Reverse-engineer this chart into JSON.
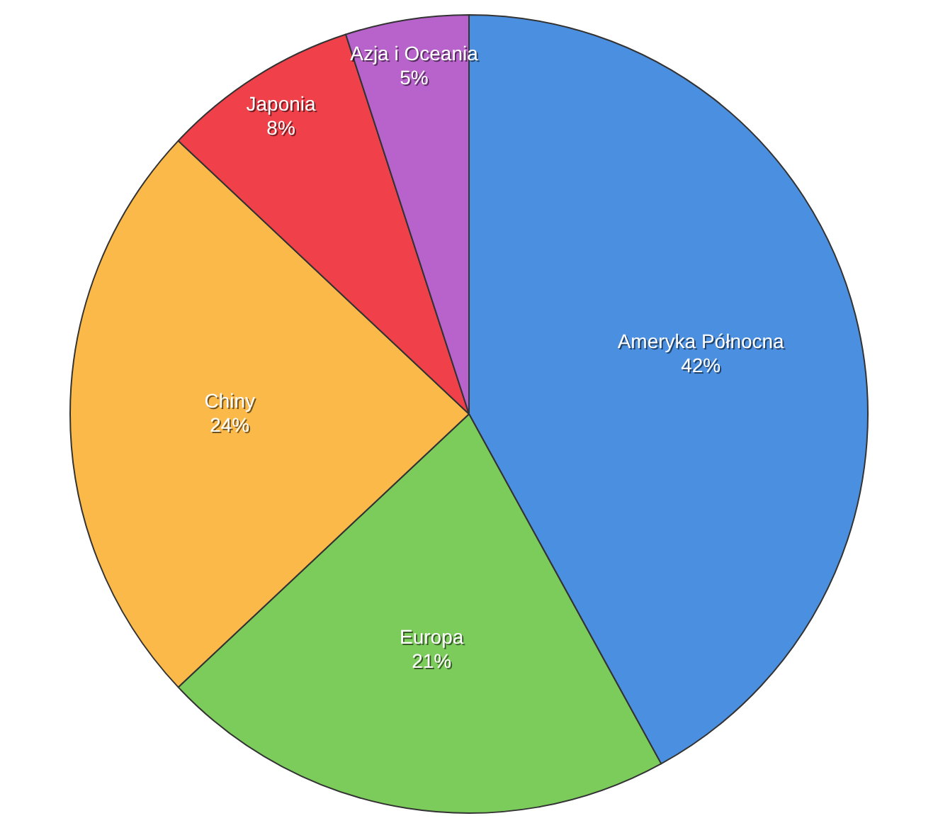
{
  "chart_data": {
    "type": "pie",
    "categories": [
      "Ameryka Północna",
      "Europa",
      "Chiny",
      "Japonia",
      "Azja i Oceania"
    ],
    "values": [
      42,
      21,
      24,
      8,
      5
    ],
    "colors": [
      "#4a8fe0",
      "#7ccc5c",
      "#fbb94a",
      "#f0414a",
      "#b862cc"
    ],
    "value_labels": [
      "42%",
      "21%",
      "24%",
      "8%",
      "5%"
    ],
    "legend": false
  }
}
